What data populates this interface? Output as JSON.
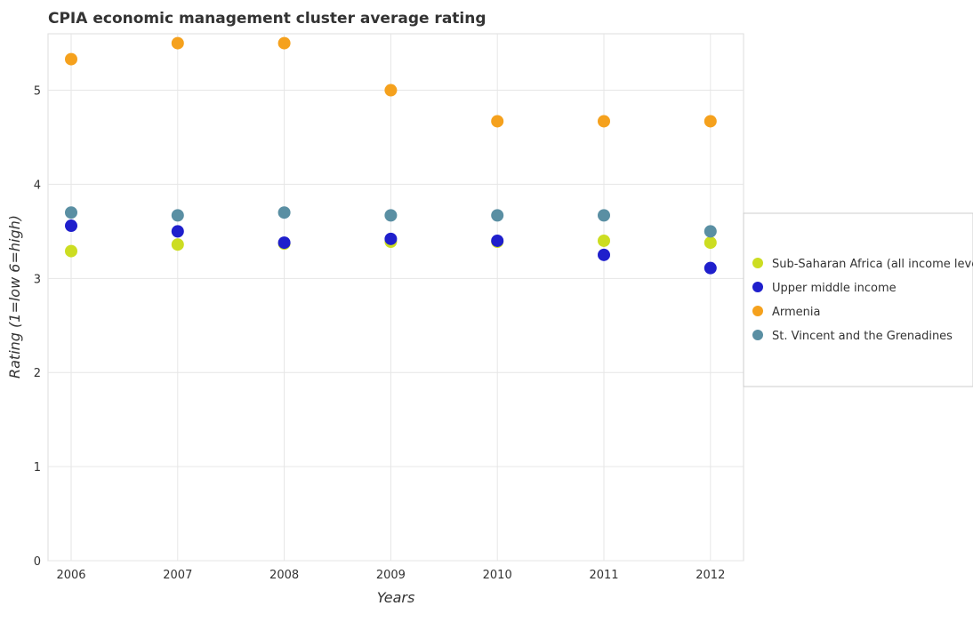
{
  "chart_data": {
    "type": "scatter",
    "title": "CPIA economic management cluster average rating",
    "xlabel": "Years",
    "ylabel": "Rating (1=low 6=high)",
    "categories": [
      "2006",
      "2007",
      "2008",
      "2009",
      "2010",
      "2011",
      "2012"
    ],
    "ylim": [
      0,
      5.6
    ],
    "yticks": [
      0,
      1,
      2,
      3,
      4,
      5
    ],
    "ytick_labels": [
      "0",
      "1",
      "2",
      "3",
      "4",
      "5"
    ],
    "grid": true,
    "legend_position": "right",
    "series": [
      {
        "name": "Sub-Saharan Africa (all income levels)",
        "color": "#ccdd22",
        "values": [
          3.29,
          3.36,
          3.37,
          3.39,
          3.39,
          3.4,
          3.38
        ]
      },
      {
        "name": "Upper middle income",
        "color": "#1f1fcc",
        "values": [
          3.56,
          3.5,
          3.38,
          3.42,
          3.4,
          3.25,
          3.11
        ]
      },
      {
        "name": "Armenia",
        "color": "#f5a11d",
        "values": [
          5.33,
          5.5,
          5.5,
          5.0,
          4.67,
          4.67,
          4.67
        ]
      },
      {
        "name": "St. Vincent and the Grenadines",
        "color": "#5a8fa3",
        "values": [
          3.7,
          3.67,
          3.7,
          3.67,
          3.67,
          3.67,
          3.5
        ]
      }
    ]
  }
}
